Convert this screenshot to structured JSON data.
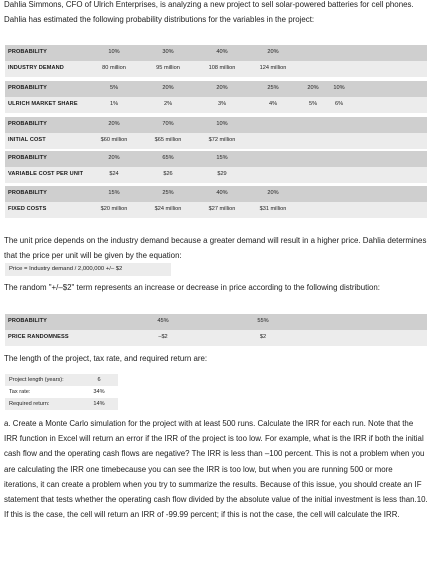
{
  "intro": "Dahlia Simmons, CFO of Ulrich Enterprises, is analyzing a new project to sell solar-powered batteries for cell phones. Dahlia has estimated the following probability distributions for the variables in the project:",
  "tables": [
    {
      "rows": [
        {
          "label": "PROBABILITY",
          "cells": [
            "10%",
            "30%",
            "40%",
            "20%"
          ]
        },
        {
          "label": "INDUSTRY DEMAND",
          "cells": [
            "80 million",
            "95 million",
            "108 million",
            "124 million"
          ]
        }
      ]
    },
    {
      "rows": [
        {
          "label": "PROBABILITY",
          "cells": [
            "5%",
            "20%",
            "20%",
            "25%",
            "20%",
            "10%"
          ]
        },
        {
          "label": "ULRICH MARKET SHARE",
          "cells": [
            "1%",
            "2%",
            "3%",
            "4%",
            "5%",
            "6%"
          ]
        }
      ]
    },
    {
      "rows": [
        {
          "label": "PROBABILITY",
          "cells": [
            "20%",
            "70%",
            "10%"
          ]
        },
        {
          "label": "INITIAL COST",
          "cells": [
            "$60 million",
            "$65 million",
            "$72 million"
          ]
        }
      ]
    },
    {
      "rows": [
        {
          "label": "PROBABILITY",
          "cells": [
            "20%",
            "65%",
            "15%"
          ]
        },
        {
          "label": "VARIABLE COST PER UNIT",
          "cells": [
            "$24",
            "$26",
            "$29"
          ]
        }
      ]
    },
    {
      "rows": [
        {
          "label": "PROBABILITY",
          "cells": [
            "15%",
            "25%",
            "40%",
            "20%"
          ]
        },
        {
          "label": "FIXED COSTS",
          "cells": [
            "$20 million",
            "$24 million",
            "$27 million",
            "$31 million"
          ]
        }
      ]
    }
  ],
  "price_paragraph": "The unit price depends on the industry demand because a greater demand will result in a higher price. Dahlia determines that the price per unit will be given by the equation:",
  "price_equation": "Price = Industry demand / 2,000,000 +/– $2",
  "random_paragraph": "The random \"+/–$2\" term represents an increase or decrease in price according to the following distribution:",
  "random_table": {
    "rows": [
      {
        "label": "PROBABILITY",
        "cells": [
          "45%",
          "55%"
        ]
      },
      {
        "label": "PRICE RANDOMNESS",
        "cells": [
          "–$2",
          "$2"
        ]
      }
    ]
  },
  "project_paragraph": "The length of the project, tax rate, and required return are:",
  "project_params": [
    {
      "label": "Project length (years):",
      "value": "6"
    },
    {
      "label": "Tax rate:",
      "value": "34%"
    },
    {
      "label": "Required return:",
      "value": "14%"
    }
  ],
  "question_a": "a. Create a Monte Carlo simulation for the project with at least 500 runs. Calculate the IRR for each run. Note that the IRR function in Excel will return an error if the IRR of the project is too low. For example, what is the IRR if both the initial cash flow and the operating cash flows are negative? The IRR is less than –100 percent. This is not a problem when you are calculating the IRR one timebecause you can see the IRR is too low, but when you are running 500 or more iterations, it can create a problem when you try to summarize the results. Because of this issue, you should create an IF statement that tests whether the operating cash flow divided by the absolute value of the initial investment is less than.10. If this is the case, the cell will return an IRR of -99.99 percent; if this is not the case, the cell will calculate the IRR."
}
